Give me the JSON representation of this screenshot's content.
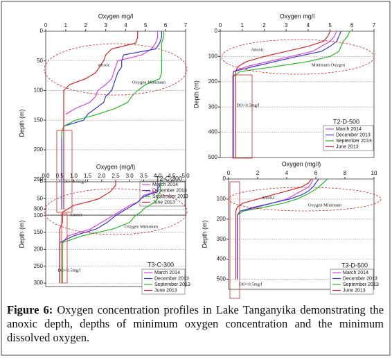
{
  "chart_data": [
    {
      "type": "line",
      "title": "T2-C-300",
      "x_label": "Oxygen mg/l",
      "y_label": "Depth (m)",
      "annotations": [
        "anoxic",
        "Oxygen Minimum",
        "DO<0.5mg/l"
      ],
      "xlim": [
        0,
        7
      ],
      "xticks": [
        0,
        1,
        2,
        3,
        4,
        5,
        6,
        7
      ],
      "ylim": [
        0,
        310
      ],
      "yticks": [
        0,
        50,
        100,
        150,
        200,
        250,
        300
      ],
      "grid": true,
      "depth": [
        0,
        10,
        20,
        30,
        40,
        50,
        60,
        70,
        80,
        90,
        100,
        110,
        120,
        130,
        140,
        150,
        160,
        170,
        180,
        200,
        250,
        300
      ],
      "series": [
        {
          "name": "March 2014",
          "color": "#e040e0",
          "values": [
            5.6,
            5.6,
            5.5,
            5.3,
            4.8,
            3.6,
            3.5,
            3.4,
            3.3,
            3.0,
            2.6,
            2.5,
            2.2,
            1.5,
            1.0,
            null,
            null,
            null,
            null,
            null,
            null,
            null
          ]
        },
        {
          "name": "December 2013",
          "color": "#3333dd",
          "values": [
            5.8,
            5.8,
            5.7,
            5.5,
            3.9,
            3.8,
            3.8,
            3.6,
            3.5,
            3.4,
            3.3,
            3.0,
            2.9,
            2.5,
            2.1,
            1.9,
            0.9,
            0.8,
            0.8,
            0.8,
            0.8,
            0.8
          ]
        },
        {
          "name": "September 2013",
          "color": "#22bb22",
          "values": [
            5.9,
            5.9,
            5.8,
            5.8,
            5.8,
            5.8,
            5.8,
            5.8,
            5.7,
            5.0,
            4.6,
            4.3,
            4.1,
            3.5,
            2.6,
            1.5,
            0.9,
            0.8,
            0.8,
            null,
            null,
            null
          ]
        },
        {
          "name": "June 2013",
          "color": "#dd2222",
          "values": [
            4.6,
            4.6,
            4.5,
            3.3,
            3.0,
            2.9,
            2.7,
            2.5,
            2.0,
            1.2,
            0.9,
            0.9,
            0.9,
            0.9,
            0.9,
            0.9,
            0.9,
            0.9,
            0.9,
            0.9,
            0.9,
            0.9
          ]
        }
      ]
    },
    {
      "type": "line",
      "title": "T2-D-500",
      "x_label": "Oxygen mg/l",
      "y_label": "Depth (m)",
      "annotations": [
        "Anoxic",
        "Minimum Oxygen",
        "DO<0.5mg/l"
      ],
      "xlim": [
        0,
        7
      ],
      "xticks": [
        0,
        1,
        2,
        3,
        4,
        5,
        6,
        7
      ],
      "ylim": [
        0,
        500
      ],
      "yticks": [
        0,
        100,
        200,
        300,
        400,
        500
      ],
      "grid": true,
      "depth": [
        0,
        20,
        40,
        60,
        80,
        100,
        120,
        140,
        160,
        180,
        200,
        300,
        400,
        500
      ],
      "series": [
        {
          "name": "March 2014",
          "color": "#e040e0",
          "values": [
            5.3,
            5.2,
            5.0,
            4.6,
            4.2,
            3.2,
            2.2,
            1.2,
            0.6,
            0.6,
            null,
            null,
            null,
            null
          ]
        },
        {
          "name": "December 2013",
          "color": "#3333dd",
          "values": [
            5.5,
            5.4,
            5.3,
            5.0,
            4.6,
            3.5,
            2.5,
            1.5,
            0.6,
            0.6,
            0.6,
            0.6,
            0.6,
            0.6
          ]
        },
        {
          "name": "September 2013",
          "color": "#22bb22",
          "values": [
            5.9,
            5.8,
            5.6,
            5.5,
            5.4,
            5.0,
            4.0,
            2.5,
            0.9,
            0.6,
            null,
            null,
            null,
            null
          ]
        },
        {
          "name": "June 2013",
          "color": "#dd2222",
          "values": [
            5.0,
            4.9,
            4.7,
            4.0,
            3.0,
            2.0,
            1.2,
            0.8,
            0.7,
            0.7,
            0.7,
            0.7,
            0.7,
            0.7
          ]
        }
      ]
    },
    {
      "type": "line",
      "title": "T3-C-300",
      "x_label": "Oxygen (mg/l)",
      "y_label": "Depth (m)",
      "annotations": [
        "Anoxic",
        "Oxygen Minimum",
        "DO<0.5mg/l"
      ],
      "xlim": [
        0,
        5
      ],
      "xticks": [
        {
          "value": 0,
          "label": "0.0"
        },
        0.5,
        {
          "value": 1,
          "label": "1.0"
        },
        1.5,
        {
          "value": 2,
          "label": "2.0"
        },
        2.5,
        {
          "value": 3,
          "label": "3.0"
        },
        3.5,
        {
          "value": 4,
          "label": "4.0"
        },
        4.5,
        {
          "value": 5,
          "label": "5.0"
        }
      ],
      "ylim": [
        0,
        310
      ],
      "yticks": [
        0,
        50,
        100,
        150,
        200,
        250,
        300
      ],
      "grid": true,
      "depth": [
        0,
        10,
        20,
        30,
        40,
        50,
        60,
        70,
        80,
        90,
        100,
        120,
        140,
        160,
        180,
        200,
        250,
        300
      ],
      "series": [
        {
          "name": "March 2014",
          "color": "#e040e0",
          "values": [
            4.0,
            4.0,
            4.0,
            3.9,
            3.5,
            3.4,
            3.3,
            3.0,
            2.8,
            2.6,
            2.4,
            2.0,
            1.6,
            0.8,
            0.6,
            null,
            null,
            null
          ]
        },
        {
          "name": "December 2013",
          "color": "#3333dd",
          "values": [
            4.1,
            4.1,
            4.0,
            4.0,
            3.6,
            3.4,
            3.3,
            3.1,
            2.9,
            2.7,
            2.5,
            2.2,
            1.8,
            1.0,
            0.5,
            0.5,
            0.5,
            0.5
          ]
        },
        {
          "name": "September 2013",
          "color": "#22bb22",
          "values": [
            4.1,
            4.1,
            4.1,
            4.1,
            4.0,
            4.0,
            3.9,
            3.7,
            3.5,
            3.4,
            3.2,
            3.0,
            2.4,
            1.3,
            0.6,
            0.6,
            0.6,
            0.6
          ]
        },
        {
          "name": "June 2013",
          "color": "#dd2222",
          "values": [
            2.5,
            2.5,
            2.4,
            2.3,
            2.1,
            1.9,
            1.5,
            1.0,
            0.8,
            0.6,
            0.6,
            0.6,
            0.5,
            0.5,
            0.5,
            0.5,
            0.5,
            0.5
          ]
        }
      ]
    },
    {
      "type": "line",
      "title": "T3-D-500",
      "x_label": "Oxygen (mg/l)",
      "y_label": "Depth (m)",
      "annotations": [
        "Anoxic",
        "Oxygen Minimum",
        "DO<0.5mg/l"
      ],
      "xlim": [
        0,
        10
      ],
      "xticks": [
        0,
        2,
        4,
        6,
        8,
        10
      ],
      "ylim": [
        0,
        550
      ],
      "yticks": [
        0,
        100,
        200,
        300,
        400,
        500
      ],
      "grid": true,
      "depth": [
        0,
        20,
        40,
        60,
        80,
        100,
        120,
        140,
        160,
        180,
        200,
        300,
        400,
        500
      ],
      "series": [
        {
          "name": "March 2014",
          "color": "#e040e0",
          "values": [
            5.8,
            5.7,
            5.5,
            5.0,
            4.5,
            4.0,
            3.0,
            2.0,
            1.0,
            0.6,
            null,
            null,
            null,
            null
          ]
        },
        {
          "name": "December 2013",
          "color": "#3333dd",
          "values": [
            6.2,
            6.0,
            5.8,
            5.5,
            5.0,
            4.2,
            3.0,
            1.8,
            0.8,
            0.6,
            0.6,
            0.6,
            0.6,
            0.6
          ]
        },
        {
          "name": "September 2013",
          "color": "#22bb22",
          "values": [
            6.8,
            6.5,
            6.2,
            5.8,
            5.3,
            4.7,
            3.8,
            2.5,
            1.0,
            0.6,
            null,
            null,
            null,
            null
          ]
        },
        {
          "name": "June 2013",
          "color": "#dd2222",
          "values": [
            5.7,
            5.5,
            5.0,
            4.0,
            3.0,
            2.0,
            1.0,
            0.6,
            0.5,
            0.5,
            0.5,
            0.5,
            0.5,
            0.5
          ]
        }
      ]
    }
  ],
  "caption": {
    "label": "Figure 6:",
    "text": "Oxygen concentration profiles in Lake Tanganyika demonstrating the anoxic depth, depths of minimum oxygen concentration and the minimum dissolved oxygen."
  }
}
